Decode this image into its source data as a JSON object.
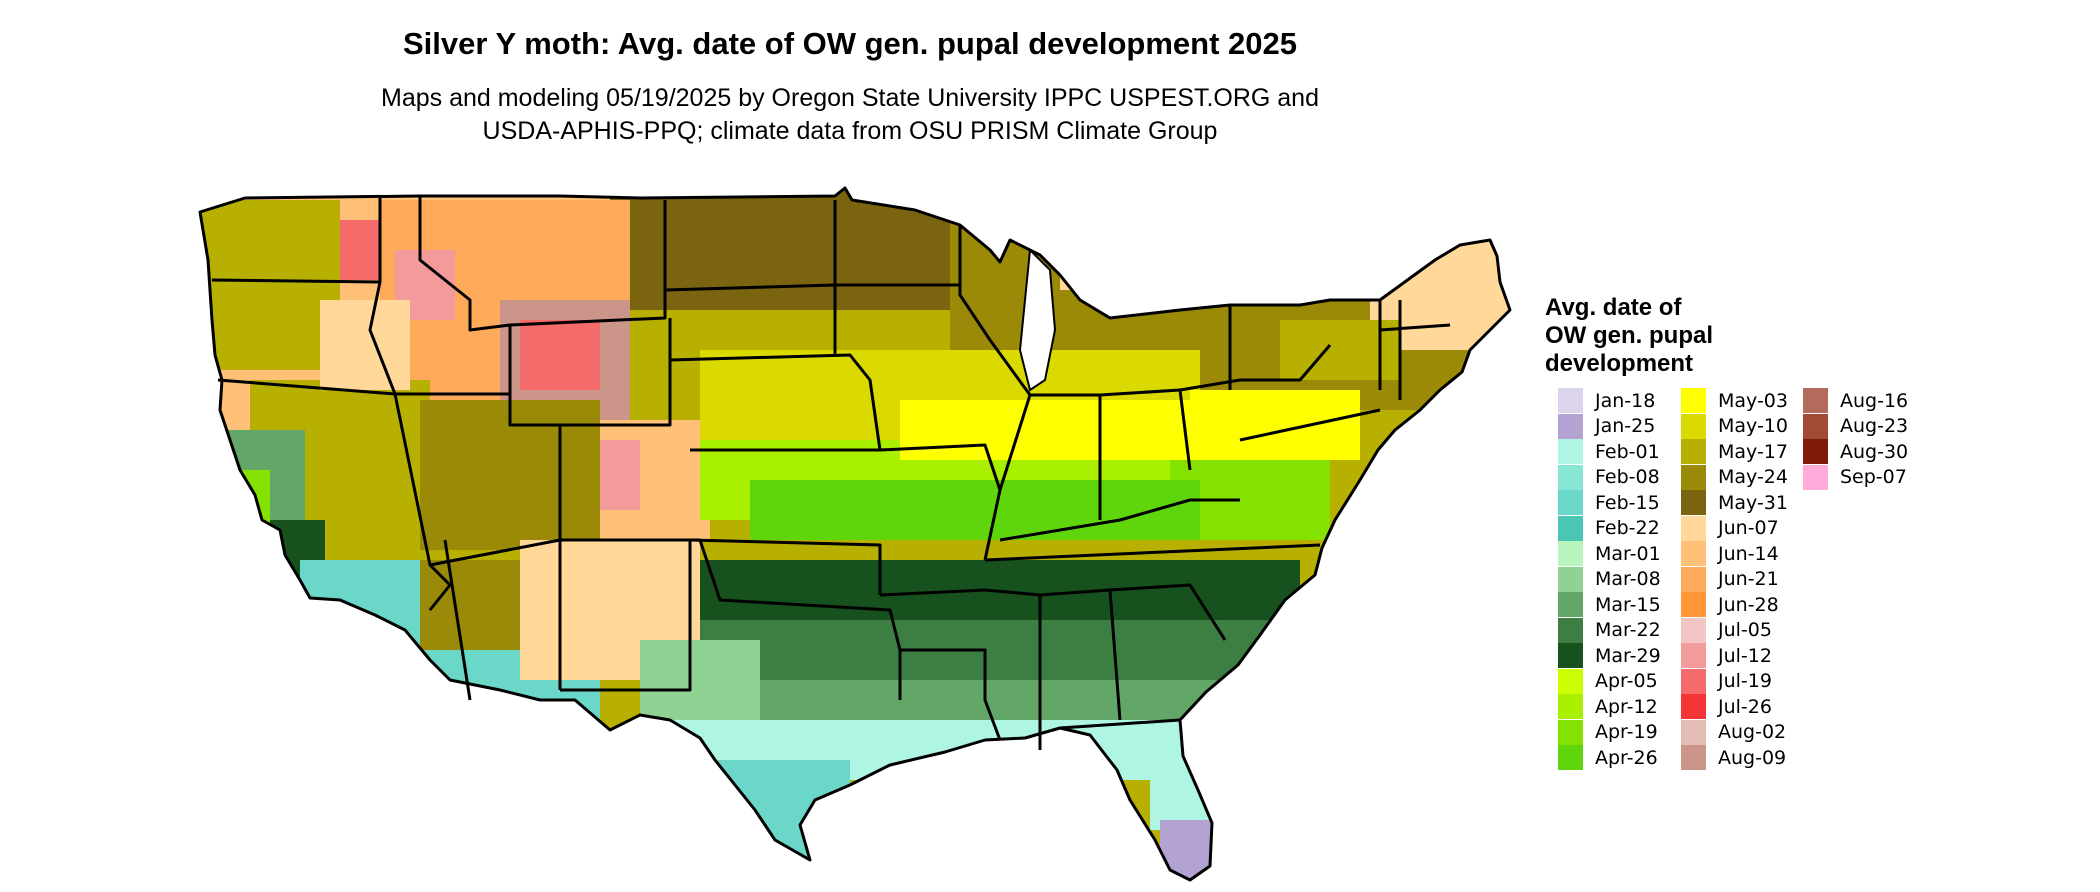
{
  "header": {
    "title": "Silver Y moth: Avg. date of OW gen. pupal development 2025",
    "subtitle_line1": "Maps and modeling 05/19/2025 by Oregon State University IPPC USPEST.ORG and",
    "subtitle_line2": "USDA-APHIS-PPQ; climate data from OSU PRISM Climate Group"
  },
  "legend": {
    "title_line1": "Avg. date of",
    "title_line2": "OW gen. pupal",
    "title_line3": "development",
    "columns": [
      [
        {
          "label": "Jan-18",
          "color": "#dcd3ec"
        },
        {
          "label": "Jan-25",
          "color": "#b3a3d3"
        },
        {
          "label": "Feb-01",
          "color": "#aff5e3"
        },
        {
          "label": "Feb-08",
          "color": "#88e6d4"
        },
        {
          "label": "Feb-15",
          "color": "#6ad7c8"
        },
        {
          "label": "Feb-22",
          "color": "#4cc6b4"
        },
        {
          "label": "Mar-01",
          "color": "#b9f6bf"
        },
        {
          "label": "Mar-08",
          "color": "#8fd293"
        },
        {
          "label": "Mar-15",
          "color": "#63a768"
        },
        {
          "label": "Mar-22",
          "color": "#3d7e43"
        },
        {
          "label": "Mar-29",
          "color": "#17511e"
        },
        {
          "label": "Apr-05",
          "color": "#ccff00"
        },
        {
          "label": "Apr-12",
          "color": "#a8ef00"
        },
        {
          "label": "Apr-19",
          "color": "#84e200"
        },
        {
          "label": "Apr-26",
          "color": "#5fd60b"
        }
      ],
      [
        {
          "label": "May-03",
          "color": "#ffff00"
        },
        {
          "label": "May-10",
          "color": "#dada00"
        },
        {
          "label": "May-17",
          "color": "#b8b000"
        },
        {
          "label": "May-24",
          "color": "#9a8a08"
        },
        {
          "label": "May-31",
          "color": "#7a6410"
        },
        {
          "label": "Jun-07",
          "color": "#ffd89a"
        },
        {
          "label": "Jun-14",
          "color": "#ffc078"
        },
        {
          "label": "Jun-21",
          "color": "#ffa95a"
        },
        {
          "label": "Jun-28",
          "color": "#ff9738"
        },
        {
          "label": "Jul-05",
          "color": "#f3c6c6"
        },
        {
          "label": "Jul-12",
          "color": "#f39a9a"
        },
        {
          "label": "Jul-19",
          "color": "#f56a6a"
        },
        {
          "label": "Jul-26",
          "color": "#f53535"
        },
        {
          "label": "Aug-02",
          "color": "#e3bcb3"
        },
        {
          "label": "Aug-09",
          "color": "#cc9589"
        }
      ],
      [
        {
          "label": "Aug-16",
          "color": "#b36c5b"
        },
        {
          "label": "Aug-23",
          "color": "#a14a36"
        },
        {
          "label": "Aug-30",
          "color": "#7d1b08"
        },
        {
          "label": "Sep-07",
          "color": "#ffaad9"
        }
      ]
    ]
  }
}
